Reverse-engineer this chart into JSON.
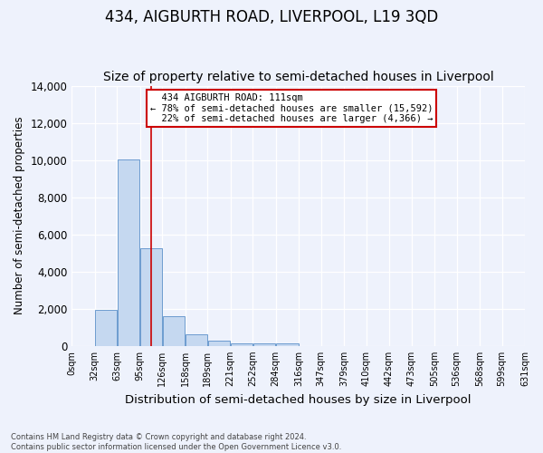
{
  "title": "434, AIGBURTH ROAD, LIVERPOOL, L19 3QD",
  "subtitle": "Size of property relative to semi-detached houses in Liverpool",
  "xlabel": "Distribution of semi-detached houses by size in Liverpool",
  "ylabel": "Number of semi-detached properties",
  "bar_color": "#c5d8f0",
  "bar_edge_color": "#5b8fc9",
  "annotation_line_color": "#cc0000",
  "property_size": 111,
  "property_label": "434 AIGBURTH ROAD: 111sqm",
  "pct_smaller": 78,
  "pct_larger": 22,
  "count_smaller": 15592,
  "count_larger": 4366,
  "annotation_box_edge_color": "#cc0000",
  "footer_line1": "Contains HM Land Registry data © Crown copyright and database right 2024.",
  "footer_line2": "Contains public sector information licensed under the Open Government Licence v3.0.",
  "bin_edges": [
    0,
    32,
    63,
    95,
    126,
    158,
    189,
    221,
    252,
    284,
    316,
    347,
    379,
    410,
    442,
    473,
    505,
    536,
    568,
    599,
    631
  ],
  "bin_labels": [
    "0sqm",
    "32sqm",
    "63sqm",
    "95sqm",
    "126sqm",
    "158sqm",
    "189sqm",
    "221sqm",
    "252sqm",
    "284sqm",
    "316sqm",
    "347sqm",
    "379sqm",
    "410sqm",
    "442sqm",
    "473sqm",
    "505sqm",
    "536sqm",
    "568sqm",
    "599sqm",
    "631sqm"
  ],
  "counts": [
    0,
    1950,
    10050,
    5250,
    1600,
    620,
    260,
    160,
    120,
    120,
    0,
    0,
    0,
    0,
    0,
    0,
    0,
    0,
    0,
    0
  ],
  "ylim": [
    0,
    14000
  ],
  "yticks": [
    0,
    2000,
    4000,
    6000,
    8000,
    10000,
    12000,
    14000
  ],
  "background_color": "#eef2fc",
  "grid_color": "#ffffff",
  "title_fontsize": 12,
  "subtitle_fontsize": 10
}
